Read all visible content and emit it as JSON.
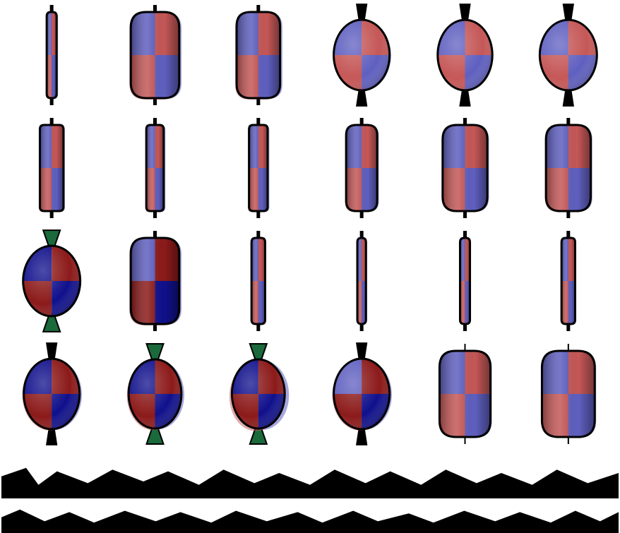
{
  "figure": {
    "grid": {
      "rows": 4,
      "cols": 6
    },
    "colors": {
      "light_red": "#c55757",
      "light_blue": "#5f5fc0",
      "dark_red": "#8c1a1a",
      "dark_blue": "#10108c",
      "outline": "#000000",
      "green": "#1a6a3c"
    },
    "cells": [
      {
        "shape": "rod",
        "width": 0.16,
        "ghost": 0.05,
        "palette": "light",
        "wedge": "none"
      },
      {
        "shape": "box",
        "width": 0.78,
        "ghost": 0.08,
        "palette": "light",
        "wedge": "none"
      },
      {
        "shape": "box",
        "width": 0.7,
        "ghost": 0.08,
        "palette": "light",
        "wedge": "none"
      },
      {
        "shape": "blob",
        "width": 0.9,
        "ghost": 0.05,
        "palette": "light",
        "wedge": "black"
      },
      {
        "shape": "blob",
        "width": 0.88,
        "ghost": 0.03,
        "palette": "light",
        "wedge": "black"
      },
      {
        "shape": "blob",
        "width": 0.92,
        "ghost": 0.03,
        "palette": "light",
        "wedge": "black"
      },
      {
        "shape": "rod",
        "width": 0.38,
        "ghost": 0.05,
        "palette": "light",
        "wedge": "none"
      },
      {
        "shape": "rod",
        "width": 0.28,
        "ghost": 0.06,
        "palette": "light",
        "wedge": "none"
      },
      {
        "shape": "rod",
        "width": 0.3,
        "ghost": 0.06,
        "palette": "light",
        "wedge": "none"
      },
      {
        "shape": "box",
        "width": 0.5,
        "ghost": 0.06,
        "palette": "light",
        "wedge": "none"
      },
      {
        "shape": "box",
        "width": 0.72,
        "ghost": 0.06,
        "palette": "light",
        "wedge": "none"
      },
      {
        "shape": "box",
        "width": 0.72,
        "ghost": 0.06,
        "palette": "light",
        "wedge": "none"
      },
      {
        "shape": "blob",
        "width": 0.92,
        "ghost": 0.0,
        "palette": "dark",
        "wedge": "green"
      },
      {
        "shape": "box",
        "width": 0.78,
        "ghost": 0.08,
        "palette": "mixed",
        "wedge": "none"
      },
      {
        "shape": "rod",
        "width": 0.22,
        "ghost": 0.03,
        "palette": "light",
        "wedge": "none"
      },
      {
        "shape": "rod",
        "width": 0.14,
        "ghost": 0.03,
        "palette": "light",
        "wedge": "none"
      },
      {
        "shape": "rod",
        "width": 0.16,
        "ghost": 0.03,
        "palette": "light",
        "wedge": "none"
      },
      {
        "shape": "rod",
        "width": 0.22,
        "ghost": 0.03,
        "palette": "light",
        "wedge": "none"
      },
      {
        "shape": "blob",
        "width": 0.9,
        "ghost": 0.08,
        "palette": "dark",
        "wedge": "black"
      },
      {
        "shape": "blob",
        "width": 0.85,
        "ghost": 0.1,
        "palette": "dark",
        "wedge": "green"
      },
      {
        "shape": "blob",
        "width": 0.85,
        "ghost": 0.15,
        "palette": "dark",
        "wedge": "green"
      },
      {
        "shape": "blob",
        "width": 0.9,
        "ghost": 0.08,
        "palette": "mixed",
        "wedge": "black"
      },
      {
        "shape": "box",
        "width": 0.82,
        "ghost": 0.05,
        "palette": "light",
        "wedge": "thin"
      },
      {
        "shape": "box",
        "width": 0.85,
        "ghost": 0.05,
        "palette": "light",
        "wedge": "thin"
      }
    ]
  }
}
